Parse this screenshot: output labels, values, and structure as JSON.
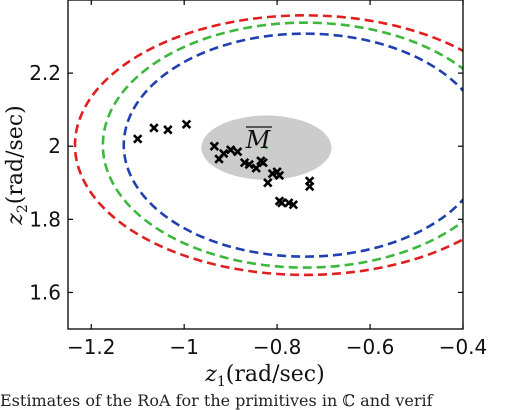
{
  "chart_data": {
    "type": "scatter",
    "xlabel_var": "z",
    "xlabel_sub": "1",
    "xlabel_unit": "(rad/sec)",
    "ylabel_var": "z",
    "ylabel_sub": "2",
    "ylabel_unit": "(rad/sec)",
    "xlim": [
      -1.25,
      -0.4
    ],
    "ylim": [
      1.5,
      2.4
    ],
    "xticks": [
      -1.2,
      -1,
      -0.8,
      -0.6,
      -0.4
    ],
    "xtick_labels": [
      "−1.2",
      "−1",
      "−0.8",
      "−0.6",
      "−0.4"
    ],
    "yticks": [
      1.6,
      1.8,
      2.0,
      2.2
    ],
    "ytick_labels": [
      "1.6",
      "1.8",
      "2",
      "2.2"
    ],
    "grid": false,
    "region": {
      "label": "M",
      "color": "#cccccc",
      "center": [
        -0.823,
        1.996
      ],
      "radii": [
        0.14,
        0.088
      ]
    },
    "ellipses": [
      {
        "color": "#e02020",
        "center": [
          -0.74,
          2.003
        ],
        "radii": [
          0.495,
          0.355
        ]
      },
      {
        "color": "#3cb83c",
        "center": [
          -0.74,
          2.003
        ],
        "radii": [
          0.435,
          0.335
        ]
      },
      {
        "color": "#2040b0",
        "center": [
          -0.74,
          2.003
        ],
        "radii": [
          0.39,
          0.305
        ]
      }
    ],
    "center_point": [
      -0.823,
      1.996
    ],
    "points": [
      [
        -1.1,
        2.02
      ],
      [
        -1.065,
        2.05
      ],
      [
        -1.035,
        2.045
      ],
      [
        -0.995,
        2.06
      ],
      [
        -0.935,
        2.0
      ],
      [
        -0.925,
        1.965
      ],
      [
        -0.915,
        1.98
      ],
      [
        -0.9,
        1.99
      ],
      [
        -0.885,
        1.985
      ],
      [
        -0.87,
        1.955
      ],
      [
        -0.86,
        1.95
      ],
      [
        -0.845,
        1.94
      ],
      [
        -0.835,
        1.96
      ],
      [
        -0.83,
        1.955
      ],
      [
        -0.82,
        1.9
      ],
      [
        -0.81,
        1.925
      ],
      [
        -0.8,
        1.93
      ],
      [
        -0.795,
        1.92
      ],
      [
        -0.795,
        1.85
      ],
      [
        -0.79,
        1.845
      ],
      [
        -0.775,
        1.845
      ],
      [
        -0.765,
        1.84
      ],
      [
        -0.73,
        1.905
      ],
      [
        -0.73,
        1.89
      ]
    ]
  },
  "caption": "Estimates of the RoA for the primitives in ℂ and verif"
}
